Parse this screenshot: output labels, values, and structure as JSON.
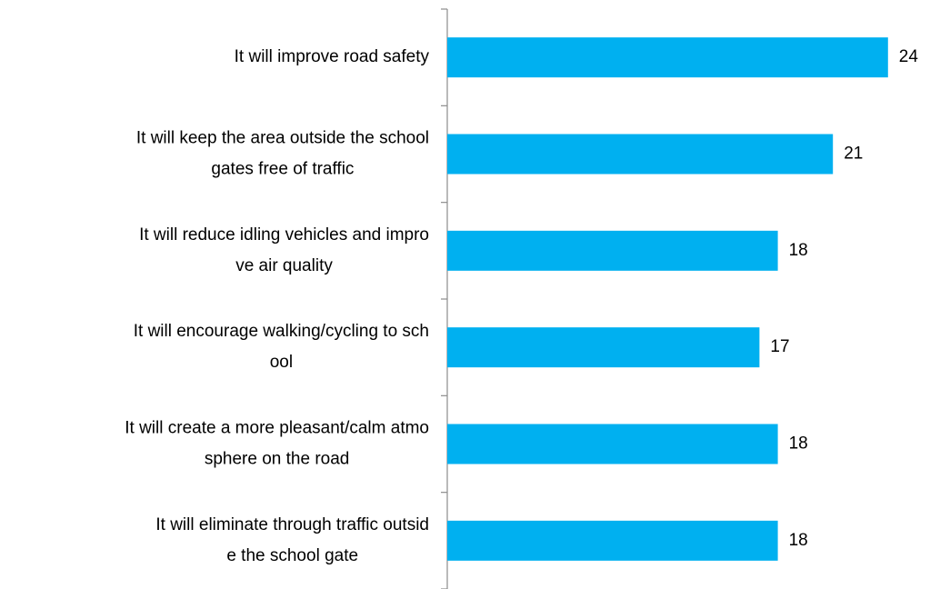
{
  "chart_data": {
    "type": "bar",
    "orientation": "horizontal",
    "categories": [
      [
        "It will improve road safety"
      ],
      [
        "It will keep the area outside the school",
        "gates free of traffic"
      ],
      [
        "It will reduce idling vehicles and impro",
        "ve air quality"
      ],
      [
        "It will encourage walking/cycling to sch",
        "ool"
      ],
      [
        "It will create a more pleasant/calm atmo",
        "sphere on the road"
      ],
      [
        "It will eliminate through traffic outsid",
        "e the school gate"
      ]
    ],
    "values": [
      24,
      21,
      18,
      17,
      18,
      18
    ],
    "color": "#00b0f0"
  }
}
